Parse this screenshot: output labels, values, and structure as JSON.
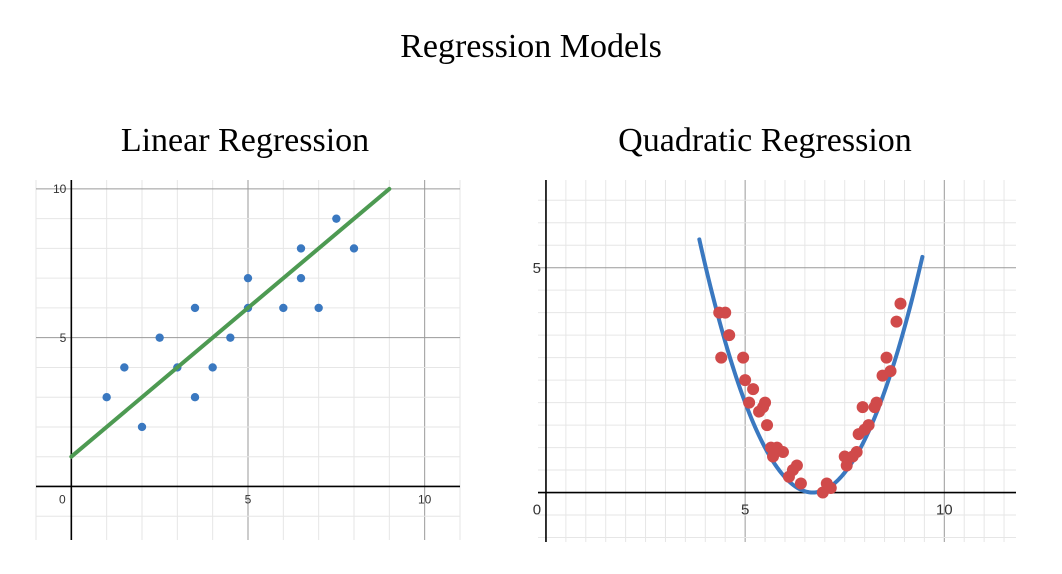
{
  "title": "Regression Models",
  "chart_data": [
    {
      "type": "scatter",
      "title": "Linear Regression",
      "xlim": [
        -1,
        11
      ],
      "ylim": [
        -1.8,
        10.3
      ],
      "x_ticks": [
        {
          "value": 0,
          "label": "0"
        },
        {
          "value": 5,
          "label": "5"
        },
        {
          "value": 10,
          "label": "10"
        }
      ],
      "y_ticks": [
        {
          "value": 5,
          "label": "5"
        },
        {
          "value": 10,
          "label": "10"
        }
      ],
      "grid": true,
      "series": [
        {
          "kind": "points",
          "color": "#3a78c0",
          "points": [
            [
              1,
              3
            ],
            [
              1.5,
              4
            ],
            [
              2,
              2
            ],
            [
              2.5,
              5
            ],
            [
              3,
              4
            ],
            [
              3.5,
              6
            ],
            [
              3.5,
              3
            ],
            [
              4,
              4
            ],
            [
              4.5,
              5
            ],
            [
              5,
              7
            ],
            [
              5,
              6
            ],
            [
              6,
              6
            ],
            [
              6.5,
              8
            ],
            [
              6.5,
              7
            ],
            [
              7,
              6
            ],
            [
              7.5,
              9
            ],
            [
              8,
              8
            ]
          ]
        },
        {
          "kind": "line",
          "color": "#4d9a52",
          "points": [
            [
              0,
              1
            ],
            [
              9,
              10
            ]
          ]
        }
      ]
    },
    {
      "type": "scatter",
      "title": "Quadratic Regression",
      "xlim": [
        -0.2,
        11.8
      ],
      "ylim": [
        -1.1,
        6.95
      ],
      "x_ticks": [
        {
          "value": 0,
          "label": "0"
        },
        {
          "value": 5,
          "label": "5"
        },
        {
          "value": 10,
          "label": "10"
        }
      ],
      "y_ticks": [
        {
          "value": 5,
          "label": "5"
        }
      ],
      "grid": true,
      "series": [
        {
          "kind": "points",
          "color": "#d04a4a",
          "points": [
            [
              4.35,
              4
            ],
            [
              4.5,
              4
            ],
            [
              4.4,
              3
            ],
            [
              4.6,
              3.5
            ],
            [
              4.95,
              3
            ],
            [
              5.0,
              2.5
            ],
            [
              5.1,
              2
            ],
            [
              5.2,
              2.3
            ],
            [
              5.35,
              1.8
            ],
            [
              5.45,
              1.9
            ],
            [
              5.5,
              2.0
            ],
            [
              5.55,
              1.5
            ],
            [
              5.65,
              1.0
            ],
            [
              5.7,
              0.8
            ],
            [
              5.8,
              1.0
            ],
            [
              5.95,
              0.9
            ],
            [
              6.1,
              0.35
            ],
            [
              6.2,
              0.5
            ],
            [
              6.3,
              0.6
            ],
            [
              6.4,
              0.2
            ],
            [
              6.95,
              0.0
            ],
            [
              7.05,
              0.2
            ],
            [
              7.15,
              0.1
            ],
            [
              7.5,
              0.8
            ],
            [
              7.55,
              0.6
            ],
            [
              7.7,
              0.8
            ],
            [
              7.8,
              0.9
            ],
            [
              7.85,
              1.3
            ],
            [
              7.95,
              1.9
            ],
            [
              8.0,
              1.4
            ],
            [
              8.1,
              1.5
            ],
            [
              8.25,
              1.9
            ],
            [
              8.3,
              2.0
            ],
            [
              8.45,
              2.6
            ],
            [
              8.55,
              3.0
            ],
            [
              8.65,
              2.7
            ],
            [
              8.8,
              3.8
            ],
            [
              8.9,
              4.2
            ]
          ]
        },
        {
          "kind": "curve",
          "color": "#3a78c0",
          "x_range": [
            3.85,
            9.45
          ],
          "coefficients": {
            "a": 0.6929,
            "h": 6.7,
            "k": 0.0
          }
        }
      ]
    }
  ]
}
